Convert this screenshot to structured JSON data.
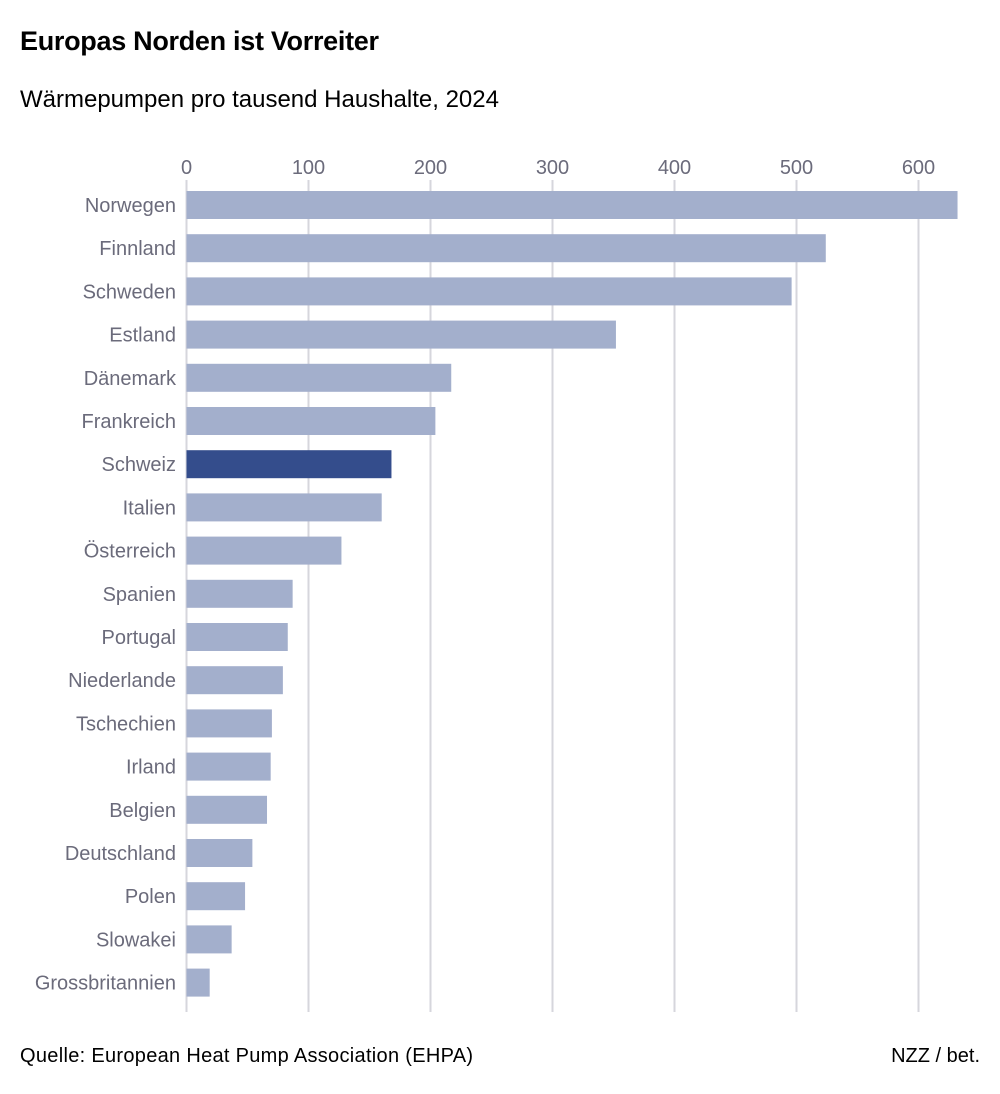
{
  "title": "Europas Norden ist Vorreiter",
  "subtitle": "Wärmepumpen pro tausend Haushalte, 2024",
  "source": "Quelle: European Heat Pump Association (EHPA)",
  "credit": "NZZ / bet.",
  "colors": {
    "bar": "#a3afcc",
    "highlight": "#344d8c",
    "grid": "#d6d6dc",
    "label": "#6b6b7b"
  },
  "chart_data": {
    "type": "bar",
    "orientation": "horizontal",
    "title": "Europas Norden ist Vorreiter",
    "subtitle": "Wärmepumpen pro tausend Haushalte, 2024",
    "xlim": [
      0,
      640
    ],
    "ticks": [
      0,
      100,
      200,
      300,
      400,
      500,
      600
    ],
    "tick_labels": [
      "0",
      "100",
      "200",
      "300",
      "400",
      "500",
      "600"
    ],
    "axis_position": "top",
    "grid": true,
    "highlight": "Schweiz",
    "categories": [
      "Norwegen",
      "Finnland",
      "Schweden",
      "Estland",
      "Dänemark",
      "Frankreich",
      "Schweiz",
      "Italien",
      "Österreich",
      "Spanien",
      "Portugal",
      "Niederlande",
      "Tschechien",
      "Irland",
      "Belgien",
      "Deutschland",
      "Polen",
      "Slowakei",
      "Grossbritannien"
    ],
    "values": [
      632,
      524,
      496,
      352,
      217,
      204,
      168,
      160,
      127,
      87,
      83,
      79,
      70,
      69,
      66,
      54,
      48,
      37,
      19
    ]
  }
}
